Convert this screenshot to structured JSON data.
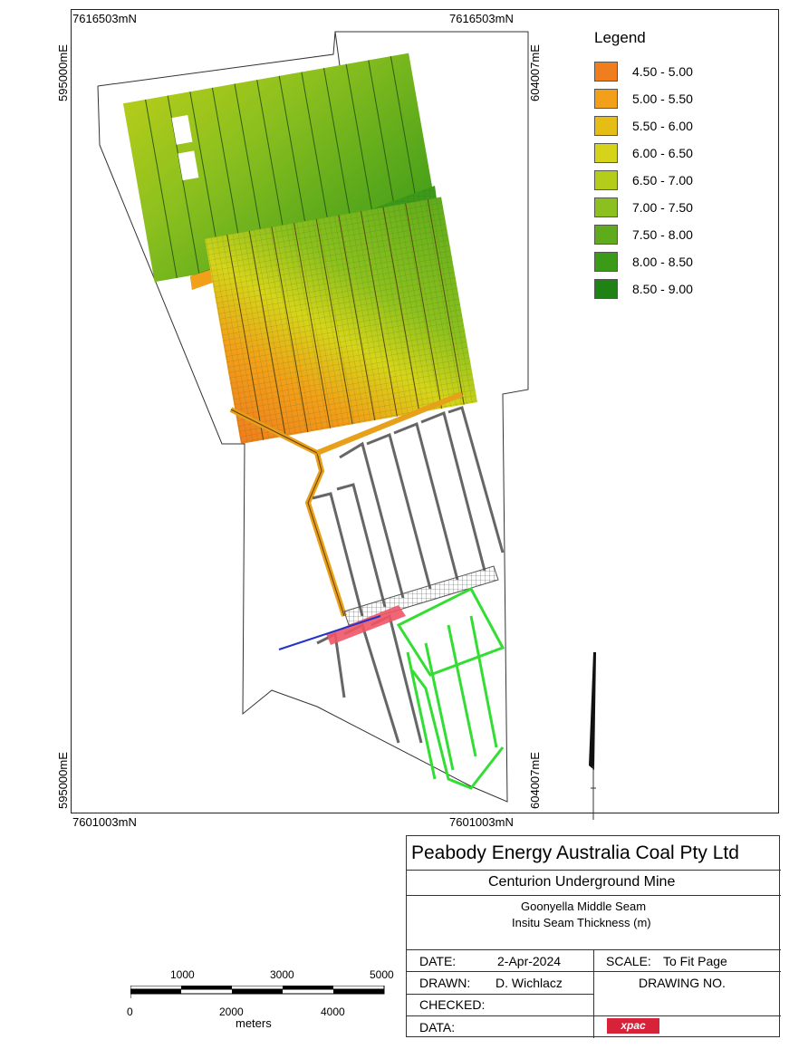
{
  "coords": {
    "top_left_n": "7616503mN",
    "top_right_n": "7616503mN",
    "bottom_left_n": "7601003mN",
    "bottom_right_n": "7601003mN",
    "left_top_e": "595000mE",
    "left_bottom_e": "595000mE",
    "right_top_e": "604007mE",
    "right_bottom_e": "604007mE"
  },
  "legend": {
    "title": "Legend",
    "items": [
      {
        "label": "4.50 - 5.00",
        "color": "#f07d1e"
      },
      {
        "label": "5.00 - 5.50",
        "color": "#f2a019"
      },
      {
        "label": "5.50 - 6.00",
        "color": "#e6bd14"
      },
      {
        "label": "6.00 - 6.50",
        "color": "#d6d41a"
      },
      {
        "label": "6.50 - 7.00",
        "color": "#b4cc1a"
      },
      {
        "label": "7.00 - 7.50",
        "color": "#8cc01e"
      },
      {
        "label": "7.50 - 8.00",
        "color": "#5fab1c"
      },
      {
        "label": "8.00 - 8.50",
        "color": "#3b9a18"
      },
      {
        "label": "8.50 - 9.00",
        "color": "#1e8214"
      }
    ]
  },
  "title_block": {
    "company": "Peabody Energy Australia Coal Pty Ltd",
    "mine": "Centurion Underground Mine",
    "seam": "Goonyella Middle Seam",
    "subject": "Insitu Seam Thickness (m)",
    "date_label": "DATE:",
    "date_value": "2-Apr-2024",
    "scale_label": "SCALE:",
    "scale_value": "To Fit Page",
    "drawn_label": "DRAWN:",
    "drawn_value": "D. Wichlacz",
    "drawing_no_label": "DRAWING NO.",
    "checked_label": "CHECKED:",
    "data_label": "DATA:",
    "logo_text": "xpac"
  },
  "scale_bar": {
    "top_labels": [
      "1000",
      "3000",
      "5000"
    ],
    "bottom_labels": [
      "0",
      "2000",
      "4000"
    ],
    "units": "meters"
  }
}
